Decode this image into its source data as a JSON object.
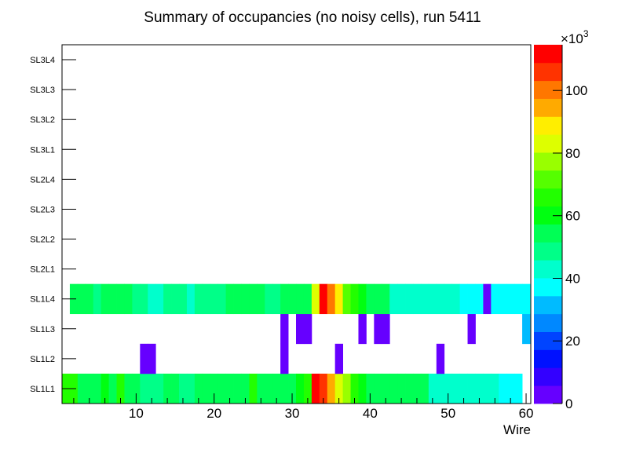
{
  "chart_data": {
    "type": "heatmap",
    "title": "Summary of occupancies (no noisy cells), run 5411",
    "xlabel": "Wire",
    "ylabel": "",
    "xlim": [
      0.5,
      60.6
    ],
    "x_ticks": [
      10,
      20,
      30,
      40,
      50,
      60
    ],
    "y_categories": [
      "SL1L1",
      "SL1L2",
      "SL1L3",
      "SL1L4",
      "SL2L1",
      "SL2L2",
      "SL2L3",
      "SL2L4",
      "SL3L1",
      "SL3L2",
      "SL3L3",
      "SL3L4"
    ],
    "z_range": [
      0,
      114600
    ],
    "z_ticks": [
      0,
      20,
      40,
      60,
      80,
      100
    ],
    "z_multiplier_label": "×10",
    "z_multiplier_exp": "3",
    "palette": [
      "#6600ff",
      "#3300ff",
      "#0011ff",
      "#0044ff",
      "#0088ff",
      "#00bbff",
      "#00ffff",
      "#00ffcc",
      "#00ff88",
      "#00ff55",
      "#00ff11",
      "#22ff00",
      "#55ff00",
      "#99ff00",
      "#ddff00",
      "#ffee00",
      "#ffaa00",
      "#ff7700",
      "#ff3300",
      "#ff0000"
    ],
    "rows": {
      "SL1L1": [
        65900,
        65900,
        54400,
        54400,
        54400,
        60200,
        54400,
        65900,
        54400,
        54400,
        48700,
        48700,
        48700,
        54400,
        54400,
        48700,
        48700,
        54400,
        54400,
        54400,
        54400,
        54400,
        54400,
        54400,
        65900,
        54400,
        54400,
        54400,
        54400,
        54400,
        60200,
        65900,
        111700,
        106000,
        94500,
        83100,
        77400,
        65900,
        60200,
        54400,
        54400,
        54400,
        54400,
        54400,
        54400,
        54400,
        54400,
        43000,
        43000,
        43000,
        43000,
        43000,
        43000,
        43000,
        43000,
        43000,
        37200,
        37200,
        37200,
        null
      ],
      "SL1L2": [
        null,
        null,
        null,
        null,
        null,
        null,
        null,
        null,
        null,
        null,
        3000,
        3000,
        null,
        null,
        null,
        null,
        null,
        null,
        null,
        null,
        null,
        null,
        null,
        null,
        null,
        null,
        null,
        null,
        3000,
        null,
        null,
        null,
        null,
        null,
        null,
        3000,
        null,
        null,
        null,
        null,
        null,
        null,
        null,
        null,
        null,
        null,
        null,
        null,
        3000,
        null,
        null,
        null,
        null,
        null,
        null,
        null,
        null,
        null,
        null,
        null
      ],
      "SL1L3": [
        null,
        null,
        null,
        null,
        null,
        null,
        null,
        null,
        null,
        null,
        null,
        null,
        null,
        null,
        null,
        null,
        null,
        null,
        null,
        null,
        null,
        null,
        null,
        null,
        null,
        null,
        null,
        null,
        3000,
        null,
        3000,
        3000,
        null,
        null,
        null,
        null,
        null,
        null,
        3000,
        null,
        3000,
        3000,
        null,
        null,
        null,
        null,
        null,
        null,
        null,
        null,
        null,
        null,
        3000,
        null,
        null,
        null,
        null,
        null,
        null,
        31500
      ],
      "SL1L4": [
        null,
        54400,
        54400,
        54400,
        48700,
        54400,
        54400,
        54400,
        54400,
        48700,
        48700,
        43000,
        43000,
        48700,
        48700,
        48700,
        43000,
        48700,
        48700,
        48700,
        48700,
        54400,
        54400,
        54400,
        54400,
        54400,
        48700,
        48700,
        54400,
        54400,
        54400,
        54400,
        83100,
        111700,
        100300,
        88800,
        71600,
        65900,
        60200,
        54400,
        54400,
        54400,
        43000,
        43000,
        43000,
        43000,
        43000,
        43000,
        43000,
        43000,
        43000,
        37200,
        37200,
        37200,
        3000,
        37200,
        37200,
        37200,
        37200,
        37200
      ]
    }
  }
}
